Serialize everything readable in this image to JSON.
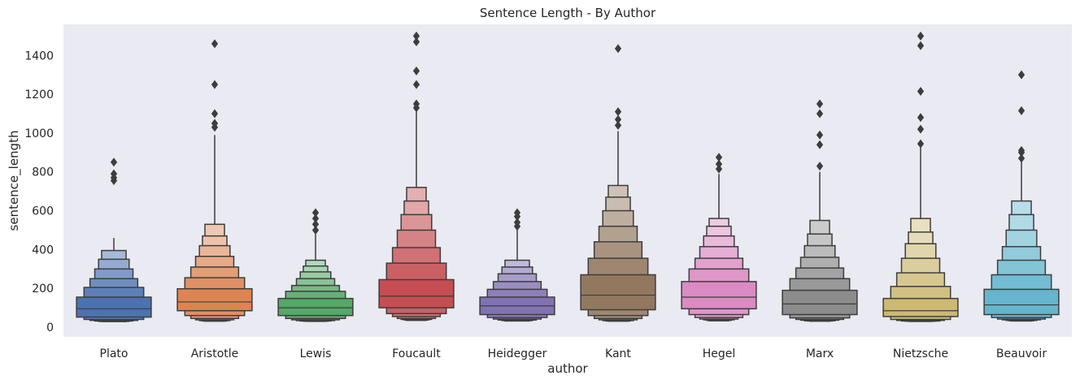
{
  "chart_data": {
    "type": "boxen",
    "title": "Sentence Length - By Author",
    "xlabel": "author",
    "ylabel": "sentence_length",
    "ylim": [
      -50,
      1560
    ],
    "yticks": [
      0,
      200,
      400,
      600,
      800,
      1000,
      1200,
      1400
    ],
    "grid": false,
    "background": "#eaeaf2",
    "edge_color": "#3d3d3d",
    "categories": [
      "Plato",
      "Aristotle",
      "Lewis",
      "Foucault",
      "Heidegger",
      "Kant",
      "Hegel",
      "Marx",
      "Nietzsche",
      "Beauvoir"
    ],
    "series": [
      {
        "category": "Plato",
        "color": "#4c72b0",
        "median": 95,
        "boxes": [
          [
            52,
            155
          ],
          [
            40,
            205
          ],
          [
            35,
            250
          ],
          [
            32,
            300
          ],
          [
            30,
            350
          ],
          [
            29,
            395
          ]
        ],
        "whisker_top": 460,
        "outliers": [
          755,
          770,
          790,
          850
        ]
      },
      {
        "category": "Aristotle",
        "color": "#dd8452",
        "median": 130,
        "boxes": [
          [
            85,
            198
          ],
          [
            60,
            255
          ],
          [
            45,
            310
          ],
          [
            38,
            365
          ],
          [
            34,
            420
          ],
          [
            32,
            470
          ],
          [
            31,
            530
          ]
        ],
        "whisker_top": 990,
        "outliers": [
          1030,
          1050,
          1100,
          1250,
          1460
        ]
      },
      {
        "category": "Lewis",
        "color": "#55a868",
        "median": 100,
        "boxes": [
          [
            60,
            148
          ],
          [
            45,
            185
          ],
          [
            38,
            215
          ],
          [
            34,
            250
          ],
          [
            32,
            285
          ],
          [
            31,
            315
          ],
          [
            30,
            345
          ]
        ],
        "whisker_top": 480,
        "outliers": [
          500,
          530,
          560,
          590
        ]
      },
      {
        "category": "Foucault",
        "color": "#c44e52",
        "median": 160,
        "boxes": [
          [
            100,
            245
          ],
          [
            70,
            330
          ],
          [
            55,
            410
          ],
          [
            45,
            500
          ],
          [
            40,
            580
          ],
          [
            37,
            650
          ],
          [
            35,
            720
          ]
        ],
        "whisker_top": 1110,
        "outliers": [
          1130,
          1150,
          1250,
          1320,
          1470,
          1500
        ]
      },
      {
        "category": "Heidegger",
        "color": "#8172b3",
        "median": 110,
        "boxes": [
          [
            65,
            155
          ],
          [
            50,
            195
          ],
          [
            42,
            235
          ],
          [
            37,
            275
          ],
          [
            34,
            310
          ],
          [
            32,
            345
          ]
        ],
        "whisker_top": 500,
        "outliers": [
          520,
          540,
          570,
          590
        ]
      },
      {
        "category": "Kant",
        "color": "#937860",
        "median": 165,
        "boxes": [
          [
            90,
            270
          ],
          [
            60,
            355
          ],
          [
            45,
            440
          ],
          [
            38,
            520
          ],
          [
            34,
            600
          ],
          [
            32,
            670
          ],
          [
            31,
            730
          ]
        ],
        "whisker_top": 1010,
        "outliers": [
          1040,
          1070,
          1110,
          1435
        ]
      },
      {
        "category": "Hegel",
        "color": "#da8bc3",
        "median": 155,
        "boxes": [
          [
            95,
            235
          ],
          [
            65,
            300
          ],
          [
            50,
            355
          ],
          [
            42,
            415
          ],
          [
            38,
            470
          ],
          [
            35,
            520
          ],
          [
            33,
            560
          ]
        ],
        "whisker_top": 790,
        "outliers": [
          815,
          840,
          875
        ]
      },
      {
        "category": "Marx",
        "color": "#8c8c8c",
        "median": 120,
        "boxes": [
          [
            65,
            190
          ],
          [
            48,
            250
          ],
          [
            40,
            305
          ],
          [
            36,
            360
          ],
          [
            33,
            420
          ],
          [
            32,
            480
          ],
          [
            31,
            550
          ]
        ],
        "whisker_top": 800,
        "outliers": [
          830,
          940,
          990,
          1100,
          1150
        ]
      },
      {
        "category": "Nietzsche",
        "color": "#ccb974",
        "median": 85,
        "boxes": [
          [
            55,
            148
          ],
          [
            40,
            210
          ],
          [
            35,
            280
          ],
          [
            32,
            355
          ],
          [
            31,
            430
          ],
          [
            30,
            490
          ],
          [
            30,
            560
          ]
        ],
        "whisker_top": 930,
        "outliers": [
          945,
          1020,
          1080,
          1215,
          1450,
          1500
        ]
      },
      {
        "category": "Beauvoir",
        "color": "#64b5cd",
        "median": 115,
        "boxes": [
          [
            65,
            195
          ],
          [
            50,
            270
          ],
          [
            42,
            345
          ],
          [
            38,
            415
          ],
          [
            35,
            500
          ],
          [
            33,
            580
          ],
          [
            32,
            650
          ]
        ],
        "whisker_top": 860,
        "outliers": [
          870,
          900,
          910,
          1115,
          1300
        ]
      }
    ]
  }
}
